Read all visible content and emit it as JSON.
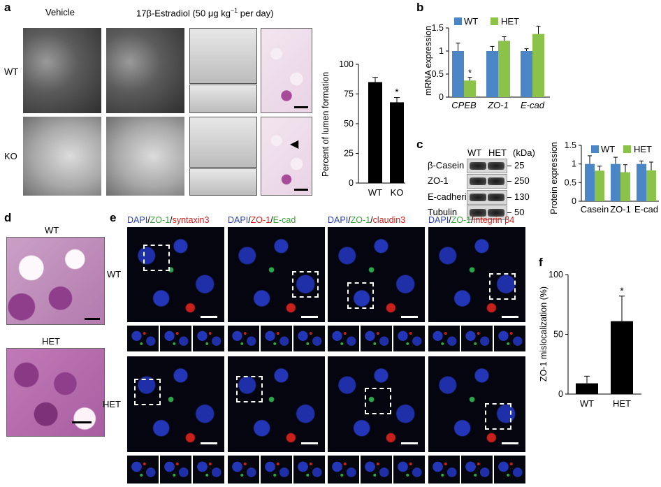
{
  "panels": {
    "a": {
      "label": "a",
      "col_vehicle": "Vehicle",
      "col_estradiol": "17β-Estradiol (50 μg kg",
      "col_estradiol_sup": "−1",
      "col_estradiol_tail": " per day)",
      "row_wt": "WT",
      "row_ko": "KO"
    },
    "b": {
      "label": "b"
    },
    "c": {
      "label": "c",
      "blot_header_wt": "WT",
      "blot_header_het": "HET",
      "blot_unit": "(kDa)",
      "blot_rows": [
        {
          "name": "β-Casein",
          "kda": "25"
        },
        {
          "name": "ZO-1",
          "kda": "250"
        },
        {
          "name": "E-cadherin",
          "kda": "130"
        },
        {
          "name": "Tubulin",
          "kda": "50"
        }
      ]
    },
    "d": {
      "label": "d",
      "row_wt": "WT",
      "row_het": "HET"
    },
    "e": {
      "label": "e",
      "row_wt": "WT",
      "row_het": "HET",
      "stains": [
        [
          {
            "t": "DAPI",
            "c": "#2b3fb3"
          },
          {
            "t": "/",
            "c": "#000"
          },
          {
            "t": "ZO-1",
            "c": "#3aa03a"
          },
          {
            "t": "/",
            "c": "#000"
          },
          {
            "t": "syntaxin3",
            "c": "#d0201c"
          }
        ],
        [
          {
            "t": "DAPI",
            "c": "#2b3fb3"
          },
          {
            "t": "/",
            "c": "#000"
          },
          {
            "t": "ZO-1",
            "c": "#d0201c"
          },
          {
            "t": "/",
            "c": "#000"
          },
          {
            "t": "E-cad",
            "c": "#3aa03a"
          }
        ],
        [
          {
            "t": "DAPI",
            "c": "#2b3fb3"
          },
          {
            "t": "/",
            "c": "#000"
          },
          {
            "t": "ZO-1",
            "c": "#3aa03a"
          },
          {
            "t": "/",
            "c": "#000"
          },
          {
            "t": "claudin3",
            "c": "#d0201c"
          }
        ],
        [
          {
            "t": "DAPI",
            "c": "#2b3fb3"
          },
          {
            "t": "/",
            "c": "#000"
          },
          {
            "t": "ZO-1",
            "c": "#3aa03a"
          },
          {
            "t": "/",
            "c": "#000"
          },
          {
            "t": "integrin β4",
            "c": "#d0201c"
          }
        ]
      ]
    },
    "f": {
      "label": "f"
    }
  },
  "colors": {
    "wt": "#4a86c5",
    "het": "#8bc34a",
    "black_bar": "#000000"
  },
  "chart_data": [
    {
      "id": "a",
      "type": "bar",
      "ylabel": "Percent of lumen formation",
      "categories": [
        "WT",
        "KO"
      ],
      "values": [
        85,
        68
      ],
      "errors": [
        4,
        4
      ],
      "significance": [
        "",
        "*"
      ],
      "ylim": [
        0,
        100
      ],
      "yticks": [
        0,
        25,
        50,
        75,
        100
      ]
    },
    {
      "id": "b",
      "type": "bar",
      "ylabel": "mRNA expression",
      "categories": [
        "CPEB",
        "ZO-1",
        "E-cad"
      ],
      "series": [
        {
          "name": "WT",
          "values": [
            1.0,
            1.0,
            1.0
          ],
          "errors": [
            0.17,
            0.1,
            0.05
          ]
        },
        {
          "name": "HET",
          "values": [
            0.36,
            1.22,
            1.37
          ],
          "errors": [
            0.07,
            0.09,
            0.17
          ]
        }
      ],
      "significance": [
        "*",
        "",
        ""
      ],
      "ylim": [
        0,
        1.5
      ],
      "yticks": [
        0,
        0.5,
        1,
        1.5
      ],
      "legend": "top"
    },
    {
      "id": "c",
      "type": "bar",
      "ylabel": "Protein expression",
      "categories": [
        "Casein",
        "ZO-1",
        "E-cad"
      ],
      "series": [
        {
          "name": "WT",
          "values": [
            1.0,
            1.0,
            1.0
          ],
          "errors": [
            0.22,
            0.18,
            0.08
          ]
        },
        {
          "name": "HET",
          "values": [
            0.82,
            0.78,
            0.83
          ],
          "errors": [
            0.12,
            0.2,
            0.22
          ]
        }
      ],
      "ylim": [
        0,
        1.5
      ],
      "yticks": [
        0,
        0.5,
        1,
        1.5
      ],
      "legend": "top"
    },
    {
      "id": "f",
      "type": "bar",
      "ylabel": "ZO-1 mislocalization (%)",
      "categories": [
        "WT",
        "HET"
      ],
      "values": [
        9,
        61
      ],
      "errors": [
        6,
        21
      ],
      "significance": [
        "",
        "*"
      ],
      "ylim": [
        0,
        100
      ],
      "yticks": [
        0,
        50,
        100
      ]
    }
  ]
}
